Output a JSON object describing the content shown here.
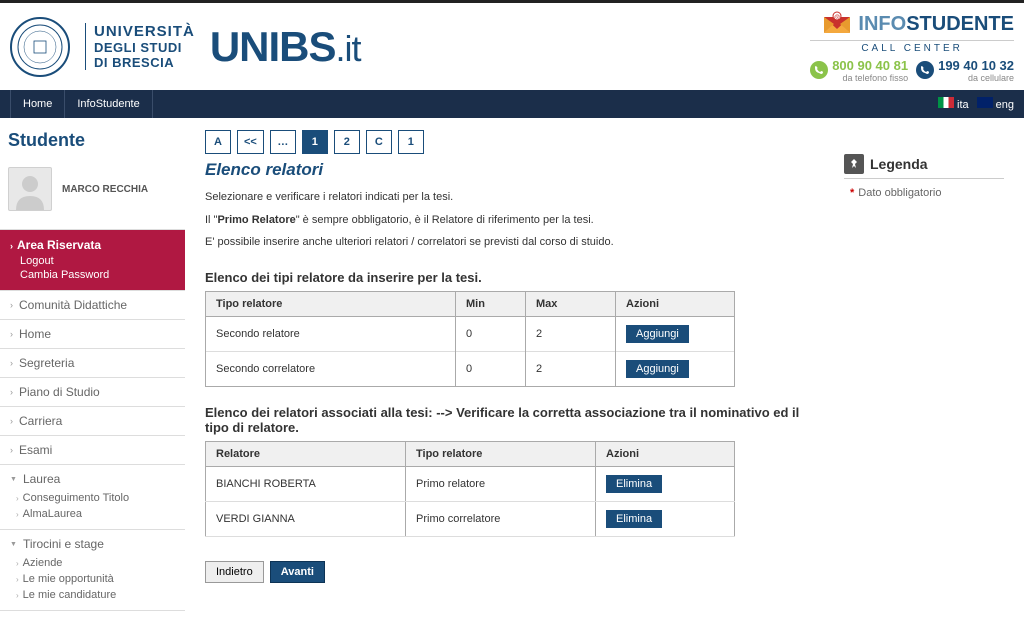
{
  "header": {
    "university_l1": "UNIVERSITÀ",
    "university_l2": "DEGLI STUDI",
    "university_l3": "DI BRESCIA",
    "logo_main": "UNIBS",
    "logo_suffix": ".it",
    "info_studente_light": "INFO",
    "info_studente_bold": "STUDENTE",
    "call_center": "CALL CENTER",
    "phone1": "800 90 40 81",
    "phone1_sub": "da telefono fisso",
    "phone2": "199 40 10 32",
    "phone2_sub": "da cellulare"
  },
  "navbar": {
    "home": "Home",
    "info": "InfoStudente",
    "lang_ita": "ita",
    "lang_eng": "eng"
  },
  "sidebar": {
    "title": "Studente",
    "user_name": "MARCO RECCHIA",
    "area_riservata": {
      "title": "Area Riservata",
      "logout": "Logout",
      "cambia_pwd": "Cambia Password"
    },
    "items": {
      "comunita": "Comunità Didattiche",
      "home": "Home",
      "segreteria": "Segreteria",
      "piano": "Piano di Studio",
      "carriera": "Carriera",
      "esami": "Esami",
      "laurea": "Laurea",
      "laurea_sub1": "Conseguimento Titolo",
      "laurea_sub2": "AlmaLaurea",
      "tirocini": "Tirocini e stage",
      "tir_sub1": "Aziende",
      "tir_sub2": "Le mie opportunità",
      "tir_sub3": "Le mie candidature"
    }
  },
  "breadcrumb": {
    "b1": "A",
    "b2": "<<",
    "b3": "…",
    "b4": "1",
    "b5": "2",
    "b6": "C",
    "b7": "1"
  },
  "page": {
    "title": "Elenco relatori",
    "p1": "Selezionare e verificare i relatori indicati per la tesi.",
    "p2a": "Il \"",
    "p2b": "Primo Relatore",
    "p2c": "\" è sempre obbligatorio, è il Relatore di riferimento per la tesi.",
    "p3": "E' possibile inserire anche ulteriori relatori / correlatori se previsti dal corso di stuido."
  },
  "table1": {
    "title": "Elenco dei tipi relatore da inserire per la tesi.",
    "h1": "Tipo relatore",
    "h2": "Min",
    "h3": "Max",
    "h4": "Azioni",
    "rows": [
      {
        "tipo": "Secondo relatore",
        "min": "0",
        "max": "2",
        "action": "Aggiungi"
      },
      {
        "tipo": "Secondo correlatore",
        "min": "0",
        "max": "2",
        "action": "Aggiungi"
      }
    ]
  },
  "table2": {
    "title": "Elenco dei relatori associati alla tesi: --> Verificare la corretta associazione tra il nominativo ed il tipo di relatore.",
    "h1": "Relatore",
    "h2": "Tipo relatore",
    "h3": "Azioni",
    "rows": [
      {
        "nome": "BIANCHI ROBERTA",
        "tipo": "Primo relatore",
        "action": "Elimina"
      },
      {
        "nome": "VERDI GIANNA",
        "tipo": "Primo correlatore",
        "action": "Elimina"
      }
    ]
  },
  "nav_buttons": {
    "back": "Indietro",
    "forward": "Avanti"
  },
  "legend": {
    "title": "Legenda",
    "item1": "Dato obbligatorio"
  }
}
